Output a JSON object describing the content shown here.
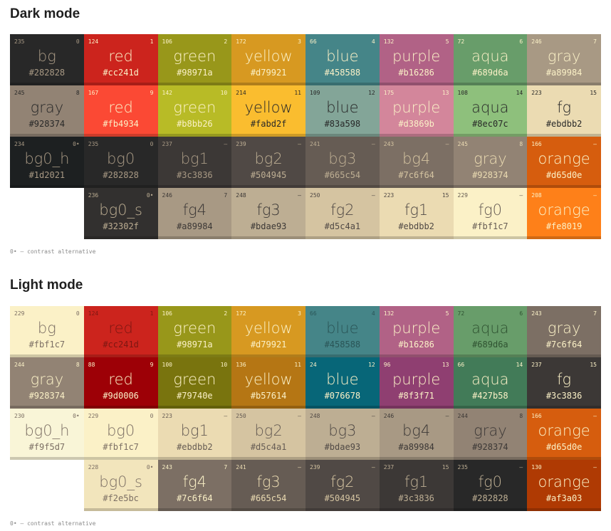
{
  "dark": {
    "title": "Dark mode",
    "note": "0• — contrast alternative",
    "rows": [
      [
        {
          "xterm": "235",
          "index": "0",
          "name": "bg",
          "hex": "#282828",
          "bg": "#282828",
          "fg": "#a89984"
        },
        {
          "xterm": "124",
          "index": "1",
          "name": "red",
          "hex": "#cc241d",
          "bg": "#cc241d",
          "fg": "#fbf1c7"
        },
        {
          "xterm": "106",
          "index": "2",
          "name": "green",
          "hex": "#98971a",
          "bg": "#98971a",
          "fg": "#fbf1c7"
        },
        {
          "xterm": "172",
          "index": "3",
          "name": "yellow",
          "hex": "#d79921",
          "bg": "#d79921",
          "fg": "#fbf1c7"
        },
        {
          "xterm": "66",
          "index": "4",
          "name": "blue",
          "hex": "#458588",
          "bg": "#458588",
          "fg": "#fbf1c7"
        },
        {
          "xterm": "132",
          "index": "5",
          "name": "purple",
          "hex": "#b16286",
          "bg": "#b16286",
          "fg": "#fbf1c7"
        },
        {
          "xterm": "72",
          "index": "6",
          "name": "aqua",
          "hex": "#689d6a",
          "bg": "#689d6a",
          "fg": "#fbf1c7"
        },
        {
          "xterm": "246",
          "index": "7",
          "name": "gray",
          "hex": "#a89984",
          "bg": "#a89984",
          "fg": "#fbf1c7"
        }
      ],
      [
        {
          "xterm": "245",
          "index": "8",
          "name": "gray",
          "hex": "#928374",
          "bg": "#928374",
          "fg": "#282828"
        },
        {
          "xterm": "167",
          "index": "9",
          "name": "red",
          "hex": "#fb4934",
          "bg": "#fb4934",
          "fg": "#fbf1c7"
        },
        {
          "xterm": "142",
          "index": "10",
          "name": "green",
          "hex": "#b8bb26",
          "bg": "#b8bb26",
          "fg": "#fbf1c7"
        },
        {
          "xterm": "214",
          "index": "11",
          "name": "yellow",
          "hex": "#fabd2f",
          "bg": "#fabd2f",
          "fg": "#282828"
        },
        {
          "xterm": "109",
          "index": "12",
          "name": "blue",
          "hex": "#83a598",
          "bg": "#83a598",
          "fg": "#282828"
        },
        {
          "xterm": "175",
          "index": "13",
          "name": "purple",
          "hex": "#d3869b",
          "bg": "#d3869b",
          "fg": "#fbf1c7"
        },
        {
          "xterm": "108",
          "index": "14",
          "name": "aqua",
          "hex": "#8ec07c",
          "bg": "#8ec07c",
          "fg": "#282828"
        },
        {
          "xterm": "223",
          "index": "15",
          "name": "fg",
          "hex": "#ebdbb2",
          "bg": "#ebdbb2",
          "fg": "#282828"
        }
      ],
      [
        {
          "xterm": "234",
          "index": "0•",
          "name": "bg0_h",
          "hex": "#1d2021",
          "bg": "#1d2021",
          "fg": "#a89984"
        },
        {
          "xterm": "235",
          "index": "0",
          "name": "bg0",
          "hex": "#282828",
          "bg": "#282828",
          "fg": "#a89984"
        },
        {
          "xterm": "237",
          "index": "–",
          "name": "bg1",
          "hex": "#3c3836",
          "bg": "#3c3836",
          "fg": "#a89984"
        },
        {
          "xterm": "239",
          "index": "–",
          "name": "bg2",
          "hex": "#504945",
          "bg": "#504945",
          "fg": "#bdae93"
        },
        {
          "xterm": "241",
          "index": "–",
          "name": "bg3",
          "hex": "#665c54",
          "bg": "#665c54",
          "fg": "#bdae93"
        },
        {
          "xterm": "243",
          "index": "–",
          "name": "bg4",
          "hex": "#7c6f64",
          "bg": "#7c6f64",
          "fg": "#d5c4a1"
        },
        {
          "xterm": "245",
          "index": "8",
          "name": "gray",
          "hex": "#928374",
          "bg": "#928374",
          "fg": "#ebdbb2"
        },
        {
          "xterm": "166",
          "index": "–",
          "name": "orange",
          "hex": "#d65d0e",
          "bg": "#d65d0e",
          "fg": "#fbf1c7"
        }
      ],
      [
        null,
        {
          "xterm": "236",
          "index": "0•",
          "name": "bg0_s",
          "hex": "#32302f",
          "bg": "#32302f",
          "fg": "#bdae93"
        },
        {
          "xterm": "246",
          "index": "7",
          "name": "fg4",
          "hex": "#a89984",
          "bg": "#a89984",
          "fg": "#3c3836"
        },
        {
          "xterm": "248",
          "index": "–",
          "name": "fg3",
          "hex": "#bdae93",
          "bg": "#bdae93",
          "fg": "#3c3836"
        },
        {
          "xterm": "250",
          "index": "–",
          "name": "fg2",
          "hex": "#d5c4a1",
          "bg": "#d5c4a1",
          "fg": "#504945"
        },
        {
          "xterm": "223",
          "index": "15",
          "name": "fg1",
          "hex": "#ebdbb2",
          "bg": "#ebdbb2",
          "fg": "#504945"
        },
        {
          "xterm": "229",
          "index": "–",
          "name": "fg0",
          "hex": "#fbf1c7",
          "bg": "#fbf1c7",
          "fg": "#665c54"
        },
        {
          "xterm": "208",
          "index": "–",
          "name": "orange",
          "hex": "#fe8019",
          "bg": "#fe8019",
          "fg": "#fbf1c7"
        }
      ]
    ]
  },
  "light": {
    "title": "Light mode",
    "note": "0• — contrast alternative",
    "rows": [
      [
        {
          "xterm": "229",
          "index": "0",
          "name": "bg",
          "hex": "#fbf1c7",
          "bg": "#fbf1c7",
          "fg": "#7c6f64"
        },
        {
          "xterm": "124",
          "index": "1",
          "name": "red",
          "hex": "#cc241d",
          "bg": "#cc241d",
          "fg": "#7c1712"
        },
        {
          "xterm": "106",
          "index": "2",
          "name": "green",
          "hex": "#98971a",
          "bg": "#98971a",
          "fg": "#fbf1c7"
        },
        {
          "xterm": "172",
          "index": "3",
          "name": "yellow",
          "hex": "#d79921",
          "bg": "#d79921",
          "fg": "#fbf1c7"
        },
        {
          "xterm": "66",
          "index": "4",
          "name": "blue",
          "hex": "#458588",
          "bg": "#458588",
          "fg": "#2a5557"
        },
        {
          "xterm": "132",
          "index": "5",
          "name": "purple",
          "hex": "#b16286",
          "bg": "#b16286",
          "fg": "#fbf1c7"
        },
        {
          "xterm": "72",
          "index": "6",
          "name": "aqua",
          "hex": "#689d6a",
          "bg": "#689d6a",
          "fg": "#2f5231"
        },
        {
          "xterm": "243",
          "index": "7",
          "name": "gray",
          "hex": "#7c6f64",
          "bg": "#7c6f64",
          "fg": "#fbf1c7"
        }
      ],
      [
        {
          "xterm": "244",
          "index": "8",
          "name": "gray",
          "hex": "#928374",
          "bg": "#928374",
          "fg": "#fbf1c7"
        },
        {
          "xterm": "88",
          "index": "9",
          "name": "red",
          "hex": "#9d0006",
          "bg": "#9d0006",
          "fg": "#fbf1c7"
        },
        {
          "xterm": "100",
          "index": "10",
          "name": "green",
          "hex": "#79740e",
          "bg": "#79740e",
          "fg": "#fbf1c7"
        },
        {
          "xterm": "136",
          "index": "11",
          "name": "yellow",
          "hex": "#b57614",
          "bg": "#b57614",
          "fg": "#fbf1c7"
        },
        {
          "xterm": "24",
          "index": "12",
          "name": "blue",
          "hex": "#076678",
          "bg": "#076678",
          "fg": "#fbf1c7"
        },
        {
          "xterm": "96",
          "index": "13",
          "name": "purple",
          "hex": "#8f3f71",
          "bg": "#8f3f71",
          "fg": "#fbf1c7"
        },
        {
          "xterm": "66",
          "index": "14",
          "name": "aqua",
          "hex": "#427b58",
          "bg": "#427b58",
          "fg": "#fbf1c7"
        },
        {
          "xterm": "237",
          "index": "15",
          "name": "fg",
          "hex": "#3c3836",
          "bg": "#3c3836",
          "fg": "#fbf1c7"
        }
      ],
      [
        {
          "xterm": "230",
          "index": "0•",
          "name": "bg0_h",
          "hex": "#f9f5d7",
          "bg": "#f9f5d7",
          "fg": "#7c6f64"
        },
        {
          "xterm": "229",
          "index": "0",
          "name": "bg0",
          "hex": "#fbf1c7",
          "bg": "#fbf1c7",
          "fg": "#7c6f64"
        },
        {
          "xterm": "223",
          "index": "–",
          "name": "bg1",
          "hex": "#ebdbb2",
          "bg": "#ebdbb2",
          "fg": "#665c54"
        },
        {
          "xterm": "250",
          "index": "–",
          "name": "bg2",
          "hex": "#d5c4a1",
          "bg": "#d5c4a1",
          "fg": "#665c54"
        },
        {
          "xterm": "248",
          "index": "–",
          "name": "bg3",
          "hex": "#bdae93",
          "bg": "#bdae93",
          "fg": "#504945"
        },
        {
          "xterm": "246",
          "index": "–",
          "name": "bg4",
          "hex": "#a89984",
          "bg": "#a89984",
          "fg": "#3c3836"
        },
        {
          "xterm": "244",
          "index": "8",
          "name": "gray",
          "hex": "#928374",
          "bg": "#928374",
          "fg": "#3c3836"
        },
        {
          "xterm": "166",
          "index": "–",
          "name": "orange",
          "hex": "#d65d0e",
          "bg": "#d65d0e",
          "fg": "#fbf1c7"
        }
      ],
      [
        null,
        {
          "xterm": "228",
          "index": "0•",
          "name": "bg0_s",
          "hex": "#f2e5bc",
          "bg": "#f2e5bc",
          "fg": "#7c6f64"
        },
        {
          "xterm": "243",
          "index": "7",
          "name": "fg4",
          "hex": "#7c6f64",
          "bg": "#7c6f64",
          "fg": "#fbf1c7"
        },
        {
          "xterm": "241",
          "index": "–",
          "name": "fg3",
          "hex": "#665c54",
          "bg": "#665c54",
          "fg": "#ebdbb2"
        },
        {
          "xterm": "239",
          "index": "–",
          "name": "fg2",
          "hex": "#504945",
          "bg": "#504945",
          "fg": "#d5c4a1"
        },
        {
          "xterm": "237",
          "index": "15",
          "name": "fg1",
          "hex": "#3c3836",
          "bg": "#3c3836",
          "fg": "#bdae93"
        },
        {
          "xterm": "235",
          "index": "–",
          "name": "fg0",
          "hex": "#282828",
          "bg": "#282828",
          "fg": "#bdae93"
        },
        {
          "xterm": "130",
          "index": "–",
          "name": "orange",
          "hex": "#af3a03",
          "bg": "#af3a03",
          "fg": "#fbf1c7"
        }
      ]
    ]
  }
}
